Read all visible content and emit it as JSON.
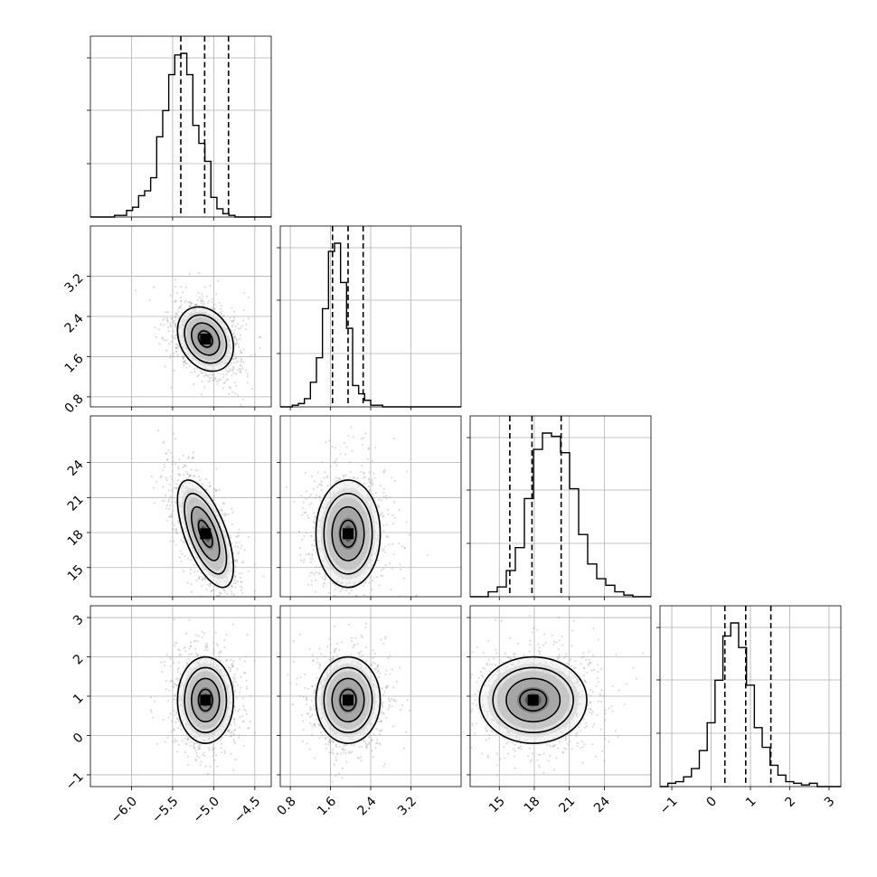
{
  "chart_data": {
    "type": "corner",
    "parameters": [
      {
        "ticks": [
          -6.0,
          -5.5,
          -5.0,
          -4.5
        ],
        "tick_labels": [
          "−6.0",
          "−5.5",
          "−5.0",
          "−4.5"
        ],
        "range": [
          -6.5,
          -4.3
        ],
        "mean": -5.1,
        "sd": 0.17,
        "quantiles": [
          -5.4,
          -5.11,
          -4.82
        ],
        "hist_edges_start": -6.5,
        "hist_bin_width": 0.0733,
        "hist_counts": [
          0,
          0,
          0,
          0.0,
          0.01,
          0.01,
          0.04,
          0.06,
          0.13,
          0.16,
          0.24,
          0.49,
          0.65,
          0.87,
          0.99,
          1.0,
          0.87,
          0.56,
          0.45,
          0.34,
          0.12,
          0.05,
          0.02,
          0.01,
          0.0,
          0,
          0,
          0,
          0,
          0
        ]
      },
      {
        "ticks": [
          0.8,
          1.6,
          2.4,
          3.2
        ],
        "tick_labels": [
          "0.8",
          "1.6",
          "2.4",
          "3.2"
        ],
        "range": [
          0.6,
          4.2
        ],
        "mean": 1.95,
        "sd": 0.32,
        "quantiles": [
          1.64,
          1.95,
          2.25
        ],
        "hist_edges_start": 0.6,
        "hist_bin_width": 0.12,
        "hist_counts": [
          0,
          0,
          0.01,
          0.02,
          0.05,
          0.15,
          0.3,
          0.6,
          0.95,
          1.0,
          0.76,
          0.48,
          0.13,
          0.08,
          0.04,
          0.01,
          0.01,
          0,
          0,
          0,
          0,
          0,
          0,
          0,
          0,
          0,
          0,
          0,
          0,
          0
        ]
      },
      {
        "ticks": [
          15,
          18,
          21,
          24
        ],
        "tick_labels": [
          "15",
          "18",
          "21",
          "24"
        ],
        "range": [
          12.5,
          28.0
        ],
        "mean": 17.9,
        "sd": 2.3,
        "quantiles": [
          15.9,
          17.8,
          20.3
        ],
        "hist_edges_start": 12.5,
        "hist_bin_width": 0.775,
        "hist_counts": [
          0,
          0,
          0.03,
          0.06,
          0.16,
          0.3,
          0.6,
          0.9,
          1.0,
          0.98,
          0.88,
          0.66,
          0.38,
          0.2,
          0.11,
          0.07,
          0.03,
          0.01,
          0.0,
          0.0
        ],
        "label_rotation": 45
      },
      {
        "ticks": [
          -1,
          0,
          1,
          2,
          3
        ],
        "tick_labels": [
          "−1",
          "0",
          "1",
          "2",
          "3"
        ],
        "range": [
          -1.3,
          3.3
        ],
        "mean": 0.9,
        "sd": 0.55,
        "quantiles": [
          0.35,
          0.88,
          1.52
        ],
        "hist_edges_start": -1.3,
        "hist_bin_width": 0.2,
        "hist_counts": [
          0,
          0.02,
          0.03,
          0.06,
          0.11,
          0.22,
          0.39,
          0.65,
          0.92,
          1.0,
          0.85,
          0.62,
          0.36,
          0.24,
          0.13,
          0.07,
          0.03,
          0.02,
          0.01,
          0.02,
          0.0,
          0.0,
          0.0
        ]
      }
    ],
    "correlations": {
      "1-0": -0.25,
      "2-0": -0.62,
      "2-1": 0.0,
      "3-0": 0.0,
      "3-1": 0.0,
      "3-2": 0.0
    },
    "contour_levels": [
      0.5,
      1.0,
      1.5,
      2.0
    ],
    "grid": true,
    "quantile_line_style": "dashed"
  }
}
